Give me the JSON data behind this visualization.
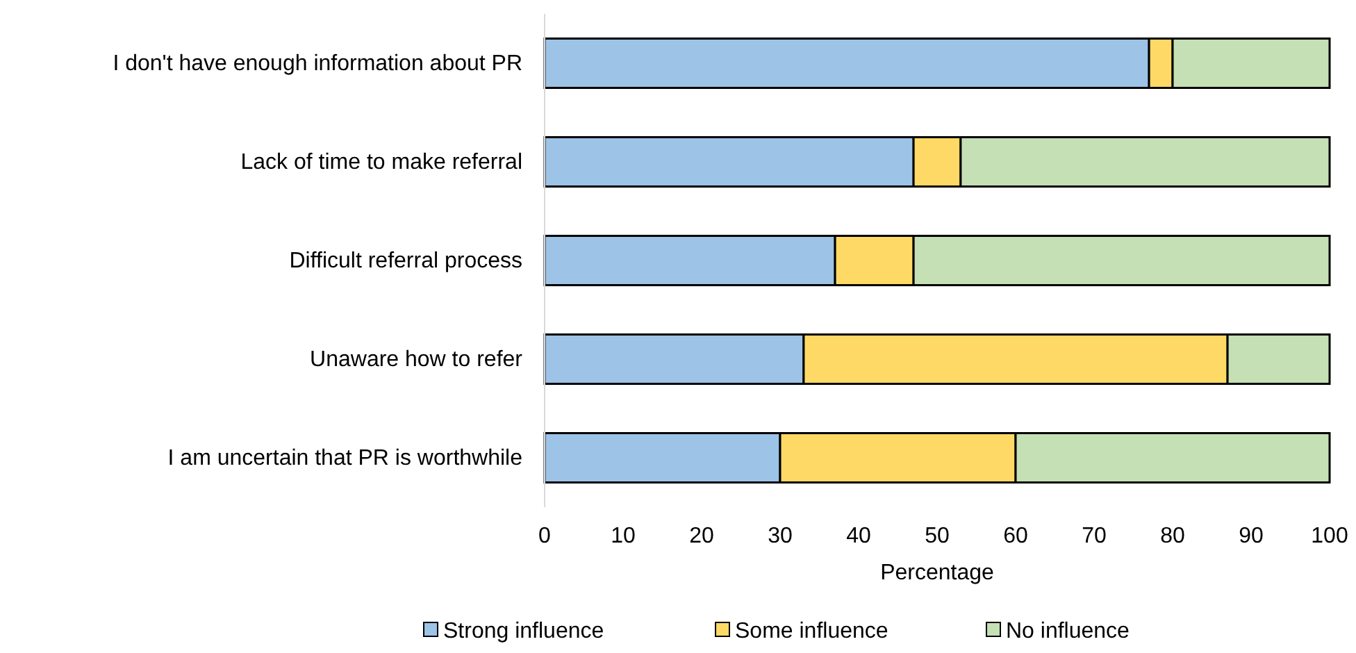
{
  "chart_data": {
    "type": "bar",
    "orientation": "horizontal",
    "stacked": true,
    "xlabel": "Percentage",
    "categories": [
      "I don't have enough information about PR",
      "Lack of time to make referral",
      "Difficult referral process",
      "Unaware how to refer",
      "I am uncertain that PR is worthwhile"
    ],
    "series": [
      {
        "name": "Strong influence",
        "color": "#9dc3e6",
        "values": [
          77,
          47,
          37,
          33,
          30
        ]
      },
      {
        "name": "Some influence",
        "color": "#ffd966",
        "values": [
          3,
          6,
          10,
          54,
          30
        ]
      },
      {
        "name": "No influence",
        "color": "#c5e0b4",
        "values": [
          20,
          47,
          53,
          13,
          40
        ]
      }
    ],
    "xlim": [
      0,
      100
    ],
    "xticks": [
      0,
      10,
      20,
      30,
      40,
      50,
      60,
      70,
      80,
      90,
      100
    ],
    "grid": false,
    "legend": "bottom"
  }
}
